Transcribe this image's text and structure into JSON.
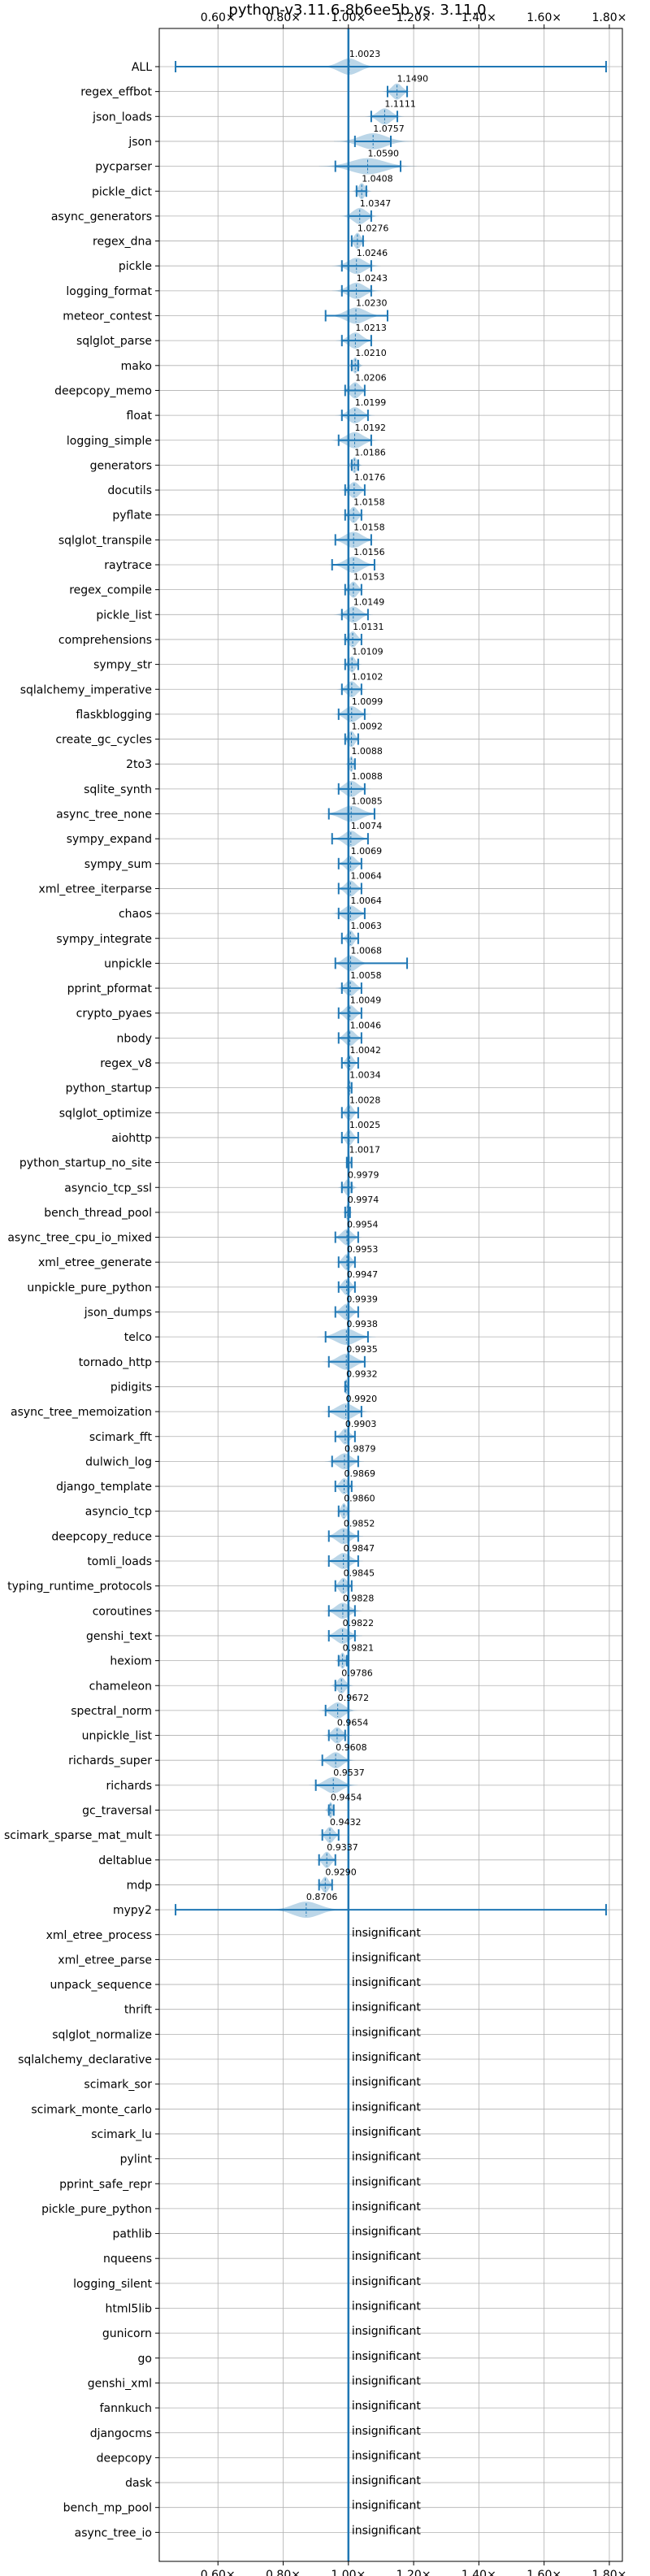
{
  "chart_data": {
    "type": "violin",
    "title": "python-v3.11.6-8b6ee5b vs. 3.11.0",
    "xlim": [
      0.42,
      1.84
    ],
    "x_ticks": [
      0.6,
      0.8,
      1.0,
      1.2,
      1.4,
      1.6,
      1.8
    ],
    "x_tick_labels": [
      "0.60×",
      "0.80×",
      "1.00×",
      "1.20×",
      "1.40×",
      "1.60×",
      "1.80×"
    ],
    "reference_line": 1.0,
    "grid": true,
    "insignificant_label": "insignificant",
    "benchmarks": [
      {
        "name": "ALL",
        "value": "1.0023",
        "mean": 1.0023,
        "min": 0.47,
        "max": 1.79,
        "spread": 0.03
      },
      {
        "name": "regex_effbot",
        "value": "1.1490",
        "mean": 1.149,
        "min": 1.12,
        "max": 1.18,
        "spread": 0.015
      },
      {
        "name": "json_loads",
        "value": "1.1111",
        "mean": 1.1111,
        "min": 1.07,
        "max": 1.15,
        "spread": 0.02
      },
      {
        "name": "json",
        "value": "1.0757",
        "mean": 1.0757,
        "min": 1.02,
        "max": 1.13,
        "spread": 0.04
      },
      {
        "name": "pycparser",
        "value": "1.0590",
        "mean": 1.059,
        "min": 0.96,
        "max": 1.16,
        "spread": 0.05
      },
      {
        "name": "pickle_dict",
        "value": "1.0408",
        "mean": 1.0408,
        "min": 1.025,
        "max": 1.055,
        "spread": 0.01
      },
      {
        "name": "async_generators",
        "value": "1.0347",
        "mean": 1.0347,
        "min": 1.0,
        "max": 1.07,
        "spread": 0.02
      },
      {
        "name": "regex_dna",
        "value": "1.0276",
        "mean": 1.0276,
        "min": 1.01,
        "max": 1.045,
        "spread": 0.01
      },
      {
        "name": "pickle",
        "value": "1.0246",
        "mean": 1.0246,
        "min": 0.98,
        "max": 1.07,
        "spread": 0.025
      },
      {
        "name": "logging_format",
        "value": "1.0243",
        "mean": 1.0243,
        "min": 0.98,
        "max": 1.07,
        "spread": 0.025
      },
      {
        "name": "meteor_contest",
        "value": "1.0230",
        "mean": 1.023,
        "min": 0.93,
        "max": 1.12,
        "spread": 0.03
      },
      {
        "name": "sqlglot_parse",
        "value": "1.0213",
        "mean": 1.0213,
        "min": 0.98,
        "max": 1.07,
        "spread": 0.02
      },
      {
        "name": "mako",
        "value": "1.0210",
        "mean": 1.021,
        "min": 1.01,
        "max": 1.03,
        "spread": 0.008
      },
      {
        "name": "deepcopy_memo",
        "value": "1.0206",
        "mean": 1.0206,
        "min": 0.99,
        "max": 1.05,
        "spread": 0.015
      },
      {
        "name": "float",
        "value": "1.0199",
        "mean": 1.0199,
        "min": 0.98,
        "max": 1.06,
        "spread": 0.02
      },
      {
        "name": "logging_simple",
        "value": "1.0192",
        "mean": 1.0192,
        "min": 0.97,
        "max": 1.07,
        "spread": 0.025
      },
      {
        "name": "generators",
        "value": "1.0186",
        "mean": 1.0186,
        "min": 1.01,
        "max": 1.03,
        "spread": 0.008
      },
      {
        "name": "docutils",
        "value": "1.0176",
        "mean": 1.0176,
        "min": 0.99,
        "max": 1.05,
        "spread": 0.015
      },
      {
        "name": "pyflate",
        "value": "1.0158",
        "mean": 1.0158,
        "min": 0.99,
        "max": 1.04,
        "spread": 0.012
      },
      {
        "name": "sqlglot_transpile",
        "value": "1.0158",
        "mean": 1.0158,
        "min": 0.96,
        "max": 1.07,
        "spread": 0.025
      },
      {
        "name": "raytrace",
        "value": "1.0156",
        "mean": 1.0156,
        "min": 0.95,
        "max": 1.08,
        "spread": 0.025
      },
      {
        "name": "regex_compile",
        "value": "1.0153",
        "mean": 1.0153,
        "min": 0.99,
        "max": 1.04,
        "spread": 0.012
      },
      {
        "name": "pickle_list",
        "value": "1.0149",
        "mean": 1.0149,
        "min": 0.98,
        "max": 1.06,
        "spread": 0.02
      },
      {
        "name": "comprehensions",
        "value": "1.0131",
        "mean": 1.0131,
        "min": 0.99,
        "max": 1.04,
        "spread": 0.012
      },
      {
        "name": "sympy_str",
        "value": "1.0109",
        "mean": 1.0109,
        "min": 0.99,
        "max": 1.03,
        "spread": 0.01
      },
      {
        "name": "sqlalchemy_imperative",
        "value": "1.0102",
        "mean": 1.0102,
        "min": 0.98,
        "max": 1.04,
        "spread": 0.015
      },
      {
        "name": "flaskblogging",
        "value": "1.0099",
        "mean": 1.0099,
        "min": 0.97,
        "max": 1.05,
        "spread": 0.02
      },
      {
        "name": "create_gc_cycles",
        "value": "1.0092",
        "mean": 1.0092,
        "min": 0.99,
        "max": 1.03,
        "spread": 0.01
      },
      {
        "name": "2to3",
        "value": "1.0088",
        "mean": 1.0088,
        "min": 1.0,
        "max": 1.02,
        "spread": 0.006
      },
      {
        "name": "sqlite_synth",
        "value": "1.0088",
        "mean": 1.0088,
        "min": 0.97,
        "max": 1.05,
        "spread": 0.02
      },
      {
        "name": "async_tree_none",
        "value": "1.0085",
        "mean": 1.0085,
        "min": 0.94,
        "max": 1.08,
        "spread": 0.03
      },
      {
        "name": "sympy_expand",
        "value": "1.0074",
        "mean": 1.0074,
        "min": 0.95,
        "max": 1.06,
        "spread": 0.02
      },
      {
        "name": "sympy_sum",
        "value": "1.0069",
        "mean": 1.0069,
        "min": 0.97,
        "max": 1.04,
        "spread": 0.015
      },
      {
        "name": "xml_etree_iterparse",
        "value": "1.0064",
        "mean": 1.0064,
        "min": 0.97,
        "max": 1.04,
        "spread": 0.015
      },
      {
        "name": "chaos",
        "value": "1.0064",
        "mean": 1.0064,
        "min": 0.97,
        "max": 1.05,
        "spread": 0.02
      },
      {
        "name": "sympy_integrate",
        "value": "1.0063",
        "mean": 1.0063,
        "min": 0.98,
        "max": 1.03,
        "spread": 0.01
      },
      {
        "name": "unpickle",
        "value": "1.0068",
        "mean": 1.0068,
        "min": 0.96,
        "max": 1.18,
        "spread": 0.02
      },
      {
        "name": "pprint_pformat",
        "value": "1.0058",
        "mean": 1.0058,
        "min": 0.98,
        "max": 1.04,
        "spread": 0.015
      },
      {
        "name": "crypto_pyaes",
        "value": "1.0049",
        "mean": 1.0049,
        "min": 0.97,
        "max": 1.04,
        "spread": 0.015
      },
      {
        "name": "nbody",
        "value": "1.0046",
        "mean": 1.0046,
        "min": 0.97,
        "max": 1.04,
        "spread": 0.015
      },
      {
        "name": "regex_v8",
        "value": "1.0042",
        "mean": 1.0042,
        "min": 0.98,
        "max": 1.03,
        "spread": 0.01
      },
      {
        "name": "python_startup",
        "value": "1.0034",
        "mean": 1.0034,
        "min": 1.0,
        "max": 1.01,
        "spread": 0.004
      },
      {
        "name": "sqlglot_optimize",
        "value": "1.0028",
        "mean": 1.0028,
        "min": 0.98,
        "max": 1.03,
        "spread": 0.01
      },
      {
        "name": "aiohttp",
        "value": "1.0025",
        "mean": 1.0025,
        "min": 0.98,
        "max": 1.03,
        "spread": 0.01
      },
      {
        "name": "python_startup_no_site",
        "value": "1.0017",
        "mean": 1.0017,
        "min": 0.995,
        "max": 1.01,
        "spread": 0.004
      },
      {
        "name": "asyncio_tcp_ssl",
        "value": "0.9979",
        "mean": 0.9979,
        "min": 0.98,
        "max": 1.01,
        "spread": 0.01
      },
      {
        "name": "bench_thread_pool",
        "value": "0.9974",
        "mean": 0.9974,
        "min": 0.99,
        "max": 1.005,
        "spread": 0.005
      },
      {
        "name": "async_tree_cpu_io_mixed",
        "value": "0.9954",
        "mean": 0.9954,
        "min": 0.96,
        "max": 1.03,
        "spread": 0.015
      },
      {
        "name": "xml_etree_generate",
        "value": "0.9953",
        "mean": 0.9953,
        "min": 0.97,
        "max": 1.02,
        "spread": 0.012
      },
      {
        "name": "unpickle_pure_python",
        "value": "0.9947",
        "mean": 0.9947,
        "min": 0.97,
        "max": 1.02,
        "spread": 0.012
      },
      {
        "name": "json_dumps",
        "value": "0.9939",
        "mean": 0.9939,
        "min": 0.96,
        "max": 1.03,
        "spread": 0.015
      },
      {
        "name": "telco",
        "value": "0.9938",
        "mean": 0.9938,
        "min": 0.93,
        "max": 1.06,
        "spread": 0.03
      },
      {
        "name": "tornado_http",
        "value": "0.9935",
        "mean": 0.9935,
        "min": 0.94,
        "max": 1.05,
        "spread": 0.025
      },
      {
        "name": "pidigits",
        "value": "0.9932",
        "mean": 0.9932,
        "min": 0.99,
        "max": 1.0,
        "spread": 0.003
      },
      {
        "name": "async_tree_memoization",
        "value": "0.9920",
        "mean": 0.992,
        "min": 0.94,
        "max": 1.04,
        "spread": 0.025
      },
      {
        "name": "scimark_fft",
        "value": "0.9903",
        "mean": 0.9903,
        "min": 0.96,
        "max": 1.02,
        "spread": 0.012
      },
      {
        "name": "dulwich_log",
        "value": "0.9879",
        "mean": 0.9879,
        "min": 0.95,
        "max": 1.03,
        "spread": 0.02
      },
      {
        "name": "django_template",
        "value": "0.9869",
        "mean": 0.9869,
        "min": 0.96,
        "max": 1.01,
        "spread": 0.012
      },
      {
        "name": "asyncio_tcp",
        "value": "0.9860",
        "mean": 0.986,
        "min": 0.97,
        "max": 1.0,
        "spread": 0.008
      },
      {
        "name": "deepcopy_reduce",
        "value": "0.9852",
        "mean": 0.9852,
        "min": 0.94,
        "max": 1.03,
        "spread": 0.02
      },
      {
        "name": "tomli_loads",
        "value": "0.9847",
        "mean": 0.9847,
        "min": 0.94,
        "max": 1.03,
        "spread": 0.02
      },
      {
        "name": "typing_runtime_protocols",
        "value": "0.9845",
        "mean": 0.9845,
        "min": 0.96,
        "max": 1.01,
        "spread": 0.012
      },
      {
        "name": "coroutines",
        "value": "0.9828",
        "mean": 0.9828,
        "min": 0.94,
        "max": 1.02,
        "spread": 0.02
      },
      {
        "name": "genshi_text",
        "value": "0.9822",
        "mean": 0.9822,
        "min": 0.94,
        "max": 1.02,
        "spread": 0.02
      },
      {
        "name": "hexiom",
        "value": "0.9821",
        "mean": 0.9821,
        "min": 0.97,
        "max": 0.995,
        "spread": 0.008
      },
      {
        "name": "chameleon",
        "value": "0.9786",
        "mean": 0.9786,
        "min": 0.96,
        "max": 1.0,
        "spread": 0.012
      },
      {
        "name": "spectral_norm",
        "value": "0.9672",
        "mean": 0.9672,
        "min": 0.93,
        "max": 1.0,
        "spread": 0.02
      },
      {
        "name": "unpickle_list",
        "value": "0.9654",
        "mean": 0.9654,
        "min": 0.94,
        "max": 0.99,
        "spread": 0.015
      },
      {
        "name": "richards_super",
        "value": "0.9608",
        "mean": 0.9608,
        "min": 0.92,
        "max": 1.0,
        "spread": 0.02
      },
      {
        "name": "richards",
        "value": "0.9537",
        "mean": 0.9537,
        "min": 0.9,
        "max": 1.0,
        "spread": 0.025
      },
      {
        "name": "gc_traversal",
        "value": "0.9454",
        "mean": 0.9454,
        "min": 0.94,
        "max": 0.955,
        "spread": 0.006
      },
      {
        "name": "scimark_sparse_mat_mult",
        "value": "0.9432",
        "mean": 0.9432,
        "min": 0.92,
        "max": 0.97,
        "spread": 0.012
      },
      {
        "name": "deltablue",
        "value": "0.9337",
        "mean": 0.9337,
        "min": 0.91,
        "max": 0.96,
        "spread": 0.012
      },
      {
        "name": "mdp",
        "value": "0.9290",
        "mean": 0.929,
        "min": 0.91,
        "max": 0.95,
        "spread": 0.01
      },
      {
        "name": "mypy2",
        "value": "0.8706",
        "mean": 0.8706,
        "min": 0.47,
        "max": 1.79,
        "spread": 0.04
      },
      {
        "name": "xml_etree_process",
        "value": "insignificant"
      },
      {
        "name": "xml_etree_parse",
        "value": "insignificant"
      },
      {
        "name": "unpack_sequence",
        "value": "insignificant"
      },
      {
        "name": "thrift",
        "value": "insignificant"
      },
      {
        "name": "sqlglot_normalize",
        "value": "insignificant"
      },
      {
        "name": "sqlalchemy_declarative",
        "value": "insignificant"
      },
      {
        "name": "scimark_sor",
        "value": "insignificant"
      },
      {
        "name": "scimark_monte_carlo",
        "value": "insignificant"
      },
      {
        "name": "scimark_lu",
        "value": "insignificant"
      },
      {
        "name": "pylint",
        "value": "insignificant"
      },
      {
        "name": "pprint_safe_repr",
        "value": "insignificant"
      },
      {
        "name": "pickle_pure_python",
        "value": "insignificant"
      },
      {
        "name": "pathlib",
        "value": "insignificant"
      },
      {
        "name": "nqueens",
        "value": "insignificant"
      },
      {
        "name": "logging_silent",
        "value": "insignificant"
      },
      {
        "name": "html5lib",
        "value": "insignificant"
      },
      {
        "name": "gunicorn",
        "value": "insignificant"
      },
      {
        "name": "go",
        "value": "insignificant"
      },
      {
        "name": "genshi_xml",
        "value": "insignificant"
      },
      {
        "name": "fannkuch",
        "value": "insignificant"
      },
      {
        "name": "djangocms",
        "value": "insignificant"
      },
      {
        "name": "deepcopy",
        "value": "insignificant"
      },
      {
        "name": "dask",
        "value": "insignificant"
      },
      {
        "name": "bench_mp_pool",
        "value": "insignificant"
      },
      {
        "name": "async_tree_io",
        "value": "insignificant"
      }
    ]
  }
}
